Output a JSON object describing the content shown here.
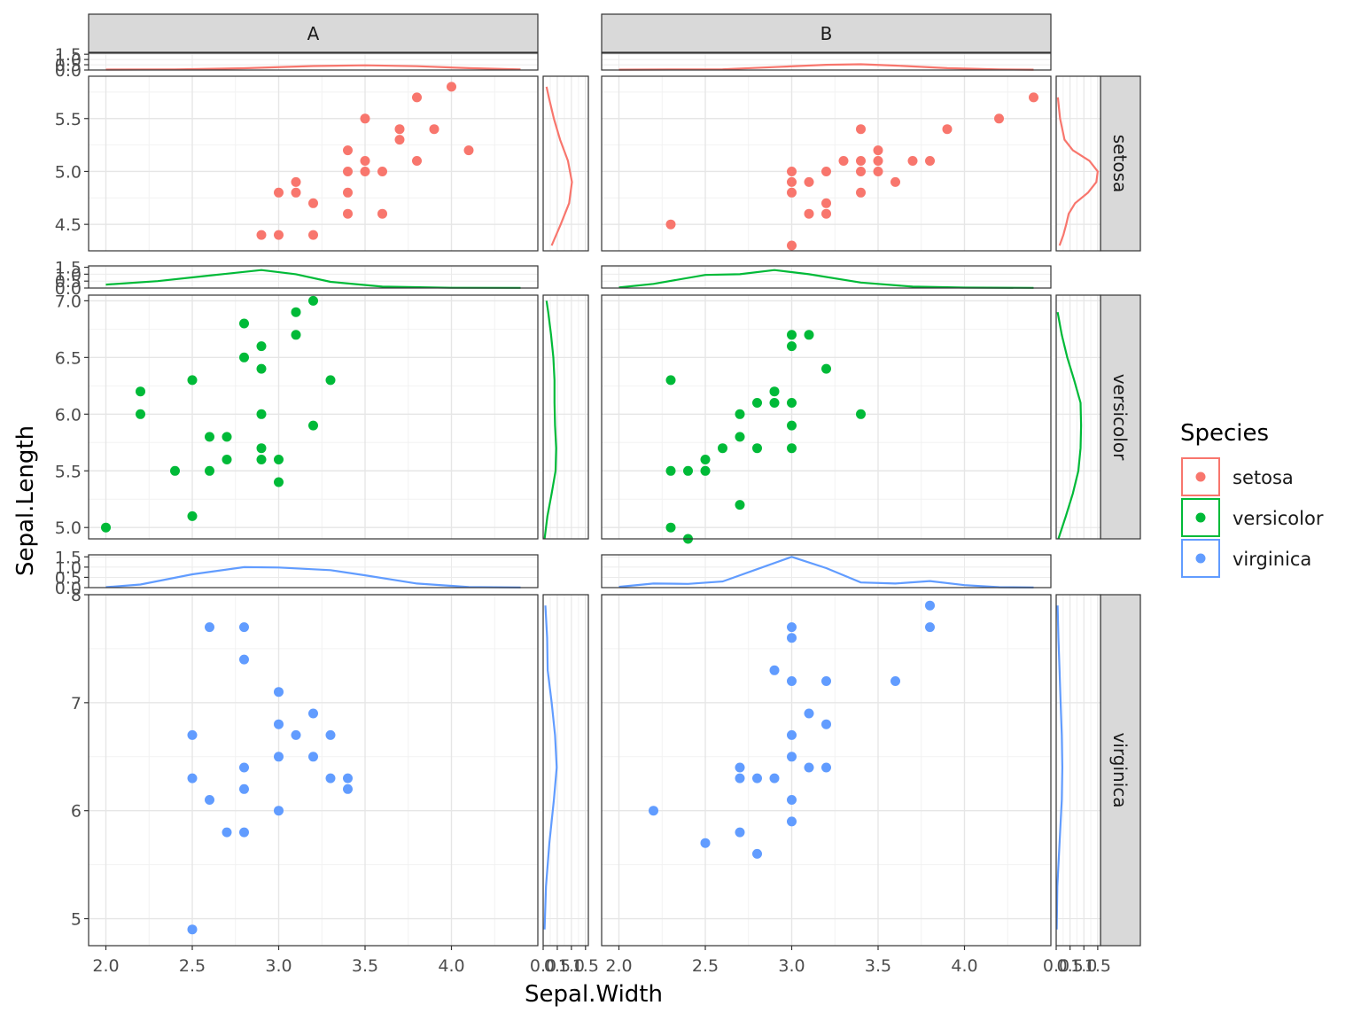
{
  "chart_data": {
    "type": "scatter",
    "xlabel": "Sepal.Width",
    "ylabel": "Sepal.Length",
    "legend_title": "Species",
    "legend_placement": "right",
    "grid": true,
    "column_facets": [
      "A",
      "B"
    ],
    "row_facets": [
      "setosa",
      "versicolor",
      "virginica"
    ],
    "xlim": [
      1.9,
      4.5
    ],
    "x_ticks": [
      "2.0",
      "2.5",
      "3.0",
      "3.5",
      "4.0"
    ],
    "series": [
      {
        "name": "setosa",
        "color": "#F8766D",
        "ylim": [
          4.25,
          5.9
        ],
        "y_ticks": [
          "4.5",
          "5.0",
          "5.5"
        ],
        "density_ticks": [
          "0.0",
          "0.5",
          "1.0",
          "1.5"
        ],
        "density_x_A": [
          [
            2.0,
            0.04
          ],
          [
            2.4,
            0.06
          ],
          [
            2.8,
            0.17
          ],
          [
            3.2,
            0.38
          ],
          [
            3.5,
            0.45
          ],
          [
            3.8,
            0.36
          ],
          [
            4.1,
            0.18
          ],
          [
            4.4,
            0.06
          ]
        ],
        "density_x_B": [
          [
            2.0,
            0.03
          ],
          [
            2.3,
            0.05
          ],
          [
            2.6,
            0.07
          ],
          [
            2.9,
            0.28
          ],
          [
            3.2,
            0.5
          ],
          [
            3.4,
            0.55
          ],
          [
            3.6,
            0.42
          ],
          [
            3.9,
            0.18
          ],
          [
            4.2,
            0.06
          ],
          [
            4.4,
            0.03
          ]
        ],
        "density_y_A": [
          [
            4.3,
            0.3
          ],
          [
            4.5,
            0.62
          ],
          [
            4.7,
            0.92
          ],
          [
            4.9,
            1.02
          ],
          [
            5.1,
            0.88
          ],
          [
            5.3,
            0.6
          ],
          [
            5.5,
            0.38
          ],
          [
            5.7,
            0.2
          ],
          [
            5.8,
            0.12
          ]
        ],
        "density_y_B": [
          [
            4.3,
            0.12
          ],
          [
            4.4,
            0.26
          ],
          [
            4.5,
            0.36
          ],
          [
            4.6,
            0.45
          ],
          [
            4.7,
            0.68
          ],
          [
            4.8,
            1.15
          ],
          [
            4.9,
            1.45
          ],
          [
            5.0,
            1.5
          ],
          [
            5.1,
            1.2
          ],
          [
            5.2,
            0.6
          ],
          [
            5.3,
            0.3
          ],
          [
            5.4,
            0.22
          ],
          [
            5.5,
            0.14
          ],
          [
            5.6,
            0.1
          ],
          [
            5.7,
            0.06
          ]
        ],
        "points_A": [
          [
            2.9,
            4.4
          ],
          [
            3.0,
            4.4
          ],
          [
            3.2,
            4.4
          ],
          [
            3.4,
            4.6
          ],
          [
            3.6,
            4.6
          ],
          [
            3.2,
            4.7
          ],
          [
            3.0,
            4.8
          ],
          [
            3.1,
            4.8
          ],
          [
            3.4,
            4.8
          ],
          [
            3.1,
            4.9
          ],
          [
            3.4,
            5.0
          ],
          [
            3.5,
            5.0
          ],
          [
            3.6,
            5.0
          ],
          [
            3.5,
            5.1
          ],
          [
            3.8,
            5.1
          ],
          [
            3.4,
            5.2
          ],
          [
            4.1,
            5.2
          ],
          [
            3.7,
            5.3
          ],
          [
            3.7,
            5.4
          ],
          [
            3.9,
            5.4
          ],
          [
            3.5,
            5.5
          ],
          [
            3.8,
            5.7
          ],
          [
            4.0,
            5.8
          ]
        ],
        "points_B": [
          [
            2.3,
            4.5
          ],
          [
            3.0,
            4.3
          ],
          [
            3.1,
            4.6
          ],
          [
            3.2,
            4.6
          ],
          [
            3.2,
            4.7
          ],
          [
            3.0,
            4.8
          ],
          [
            3.4,
            4.8
          ],
          [
            3.0,
            4.9
          ],
          [
            3.1,
            4.9
          ],
          [
            3.6,
            4.9
          ],
          [
            3.0,
            5.0
          ],
          [
            3.2,
            5.0
          ],
          [
            3.4,
            5.0
          ],
          [
            3.5,
            5.0
          ],
          [
            3.3,
            5.1
          ],
          [
            3.4,
            5.1
          ],
          [
            3.5,
            5.1
          ],
          [
            3.7,
            5.1
          ],
          [
            3.8,
            5.1
          ],
          [
            3.5,
            5.2
          ],
          [
            3.4,
            5.4
          ],
          [
            3.9,
            5.4
          ],
          [
            4.2,
            5.5
          ],
          [
            4.4,
            5.7
          ]
        ]
      },
      {
        "name": "versicolor",
        "color": "#00BA38",
        "ylim": [
          4.9,
          7.05
        ],
        "y_ticks": [
          "5.0",
          "5.5",
          "6.0",
          "6.5",
          "7.0"
        ],
        "density_ticks": [
          "0.0",
          "0.5",
          "1.0",
          "1.5"
        ],
        "density_x_A": [
          [
            2.0,
            0.25
          ],
          [
            2.3,
            0.5
          ],
          [
            2.6,
            0.9
          ],
          [
            2.9,
            1.3
          ],
          [
            3.1,
            1.0
          ],
          [
            3.3,
            0.45
          ],
          [
            3.6,
            0.1
          ],
          [
            4.0,
            0.02
          ],
          [
            4.4,
            0.01
          ]
        ],
        "density_x_B": [
          [
            2.0,
            0.04
          ],
          [
            2.2,
            0.3
          ],
          [
            2.5,
            0.95
          ],
          [
            2.7,
            1.0
          ],
          [
            2.9,
            1.3
          ],
          [
            3.1,
            1.0
          ],
          [
            3.4,
            0.4
          ],
          [
            3.7,
            0.1
          ],
          [
            4.0,
            0.03
          ],
          [
            4.4,
            0.01
          ]
        ],
        "density_y_A": [
          [
            4.9,
            0.05
          ],
          [
            5.1,
            0.15
          ],
          [
            5.3,
            0.3
          ],
          [
            5.5,
            0.44
          ],
          [
            5.7,
            0.46
          ],
          [
            5.9,
            0.42
          ],
          [
            6.1,
            0.4
          ],
          [
            6.3,
            0.4
          ],
          [
            6.5,
            0.36
          ],
          [
            6.7,
            0.28
          ],
          [
            6.9,
            0.18
          ],
          [
            7.0,
            0.12
          ]
        ],
        "density_y_B": [
          [
            4.9,
            0.08
          ],
          [
            5.1,
            0.35
          ],
          [
            5.3,
            0.6
          ],
          [
            5.5,
            0.8
          ],
          [
            5.7,
            0.88
          ],
          [
            5.9,
            0.9
          ],
          [
            6.1,
            0.88
          ],
          [
            6.3,
            0.65
          ],
          [
            6.5,
            0.4
          ],
          [
            6.7,
            0.2
          ],
          [
            6.9,
            0.05
          ]
        ],
        "points_A": [
          [
            2.0,
            5.0
          ],
          [
            2.5,
            5.1
          ],
          [
            3.0,
            5.4
          ],
          [
            2.4,
            5.5
          ],
          [
            2.6,
            5.5
          ],
          [
            2.7,
            5.6
          ],
          [
            2.9,
            5.6
          ],
          [
            3.0,
            5.6
          ],
          [
            2.9,
            5.7
          ],
          [
            2.6,
            5.8
          ],
          [
            2.7,
            5.8
          ],
          [
            3.2,
            5.9
          ],
          [
            2.2,
            6.0
          ],
          [
            2.9,
            6.0
          ],
          [
            2.2,
            6.2
          ],
          [
            2.5,
            6.3
          ],
          [
            3.3,
            6.3
          ],
          [
            2.9,
            6.4
          ],
          [
            2.8,
            6.5
          ],
          [
            2.9,
            6.6
          ],
          [
            3.1,
            6.7
          ],
          [
            2.8,
            6.8
          ],
          [
            3.1,
            6.9
          ],
          [
            3.2,
            7.0
          ]
        ],
        "points_B": [
          [
            2.4,
            4.9
          ],
          [
            2.3,
            5.0
          ],
          [
            2.7,
            5.2
          ],
          [
            2.3,
            5.5
          ],
          [
            2.4,
            5.5
          ],
          [
            2.5,
            5.5
          ],
          [
            2.5,
            5.6
          ],
          [
            2.6,
            5.7
          ],
          [
            2.8,
            5.7
          ],
          [
            3.0,
            5.7
          ],
          [
            2.7,
            5.8
          ],
          [
            3.0,
            5.9
          ],
          [
            2.7,
            6.0
          ],
          [
            3.4,
            6.0
          ],
          [
            2.8,
            6.1
          ],
          [
            2.9,
            6.1
          ],
          [
            3.0,
            6.1
          ],
          [
            2.9,
            6.2
          ],
          [
            2.3,
            6.3
          ],
          [
            3.2,
            6.4
          ],
          [
            3.0,
            6.6
          ],
          [
            3.0,
            6.7
          ],
          [
            3.1,
            6.7
          ]
        ]
      },
      {
        "name": "virginica",
        "color": "#619CFF",
        "ylim": [
          4.75,
          8.0
        ],
        "y_ticks": [
          "5",
          "6",
          "7",
          "8"
        ],
        "density_ticks": [
          "0.0",
          "0.5",
          "1.0",
          "1.5"
        ],
        "density_x_A": [
          [
            2.0,
            0.02
          ],
          [
            2.2,
            0.15
          ],
          [
            2.5,
            0.65
          ],
          [
            2.8,
            1.0
          ],
          [
            3.0,
            0.98
          ],
          [
            3.3,
            0.85
          ],
          [
            3.5,
            0.6
          ],
          [
            3.8,
            0.2
          ],
          [
            4.1,
            0.03
          ],
          [
            4.4,
            0.01
          ]
        ],
        "density_x_B": [
          [
            2.0,
            0.04
          ],
          [
            2.2,
            0.2
          ],
          [
            2.4,
            0.18
          ],
          [
            2.6,
            0.3
          ],
          [
            2.8,
            0.9
          ],
          [
            3.0,
            1.5
          ],
          [
            3.2,
            0.95
          ],
          [
            3.4,
            0.25
          ],
          [
            3.6,
            0.2
          ],
          [
            3.8,
            0.32
          ],
          [
            4.0,
            0.12
          ],
          [
            4.2,
            0.02
          ],
          [
            4.4,
            0.01
          ]
        ],
        "density_y_A": [
          [
            4.9,
            0.05
          ],
          [
            5.3,
            0.1
          ],
          [
            5.7,
            0.22
          ],
          [
            6.1,
            0.38
          ],
          [
            6.4,
            0.48
          ],
          [
            6.7,
            0.42
          ],
          [
            7.0,
            0.3
          ],
          [
            7.3,
            0.16
          ],
          [
            7.6,
            0.14
          ],
          [
            7.9,
            0.08
          ]
        ],
        "density_y_B": [
          [
            4.9,
            0.02
          ],
          [
            5.3,
            0.04
          ],
          [
            5.7,
            0.12
          ],
          [
            6.1,
            0.2
          ],
          [
            6.4,
            0.22
          ],
          [
            6.7,
            0.2
          ],
          [
            7.0,
            0.16
          ],
          [
            7.3,
            0.12
          ],
          [
            7.6,
            0.08
          ],
          [
            7.9,
            0.05
          ]
        ],
        "points_A": [
          [
            2.5,
            4.9
          ],
          [
            2.7,
            5.8
          ],
          [
            2.8,
            5.8
          ],
          [
            3.0,
            6.0
          ],
          [
            2.6,
            6.1
          ],
          [
            2.8,
            6.2
          ],
          [
            3.4,
            6.2
          ],
          [
            2.5,
            6.3
          ],
          [
            3.3,
            6.3
          ],
          [
            3.4,
            6.3
          ],
          [
            2.8,
            6.4
          ],
          [
            3.0,
            6.5
          ],
          [
            3.2,
            6.5
          ],
          [
            2.5,
            6.7
          ],
          [
            3.1,
            6.7
          ],
          [
            3.3,
            6.7
          ],
          [
            3.0,
            6.8
          ],
          [
            3.2,
            6.9
          ],
          [
            3.0,
            7.1
          ],
          [
            2.8,
            7.4
          ],
          [
            2.6,
            7.7
          ],
          [
            2.8,
            7.7
          ]
        ],
        "points_B": [
          [
            2.8,
            5.6
          ],
          [
            2.5,
            5.7
          ],
          [
            2.7,
            5.8
          ],
          [
            3.0,
            5.9
          ],
          [
            2.2,
            6.0
          ],
          [
            3.0,
            6.1
          ],
          [
            2.7,
            6.3
          ],
          [
            2.8,
            6.3
          ],
          [
            2.9,
            6.3
          ],
          [
            2.7,
            6.4
          ],
          [
            3.1,
            6.4
          ],
          [
            3.2,
            6.4
          ],
          [
            3.0,
            6.5
          ],
          [
            3.0,
            6.7
          ],
          [
            3.2,
            6.8
          ],
          [
            3.1,
            6.9
          ],
          [
            3.0,
            7.2
          ],
          [
            3.2,
            7.2
          ],
          [
            3.6,
            7.2
          ],
          [
            2.9,
            7.3
          ],
          [
            3.0,
            7.6
          ],
          [
            3.0,
            7.7
          ],
          [
            3.8,
            7.7
          ],
          [
            3.8,
            7.9
          ]
        ]
      }
    ]
  }
}
